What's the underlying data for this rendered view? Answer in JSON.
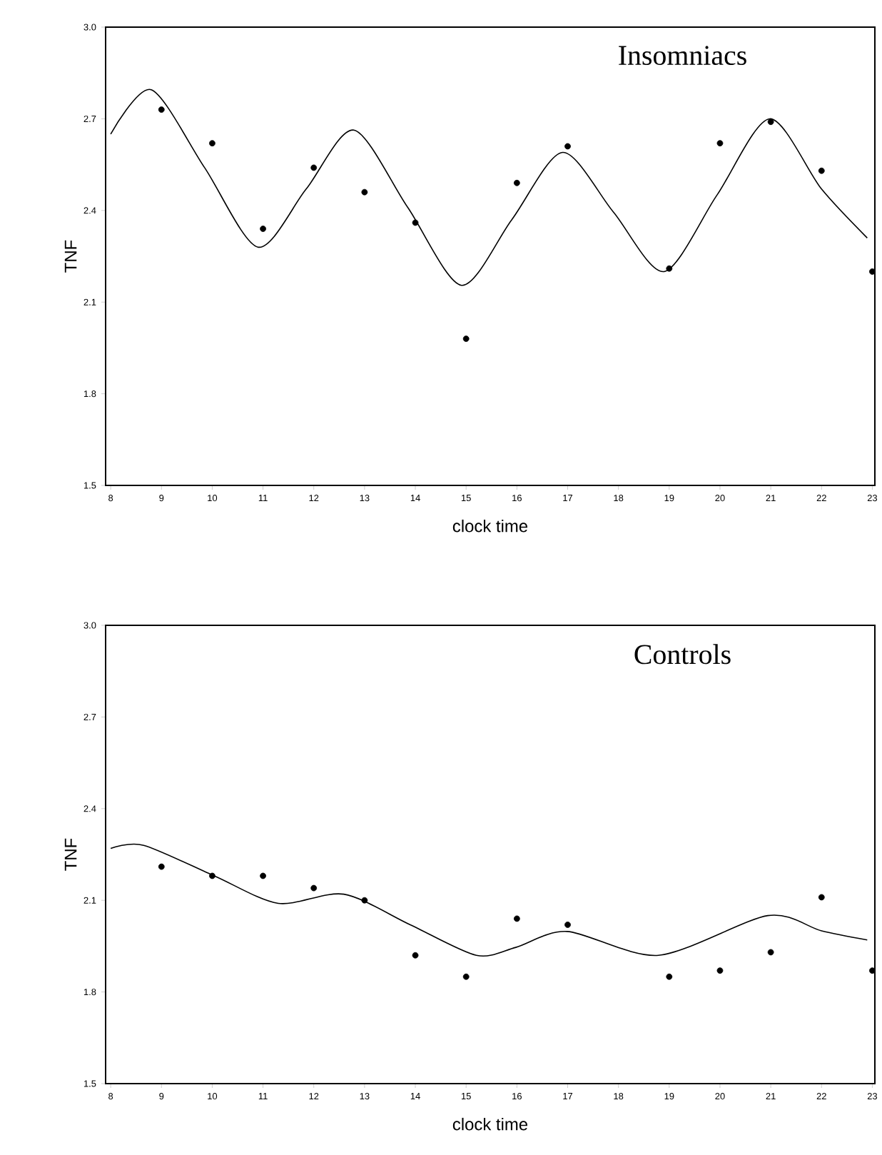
{
  "chart_data": [
    {
      "type": "scatter",
      "title": "Insomniacs",
      "xlabel": "clock time",
      "ylabel": "TNF",
      "xlim": [
        7.9,
        23.05
      ],
      "ylim": [
        1.5,
        3.0
      ],
      "xticks": [
        8,
        9,
        10,
        11,
        12,
        13,
        14,
        15,
        16,
        17,
        18,
        19,
        20,
        21,
        22,
        23
      ],
      "yticks": [
        1.5,
        1.8,
        2.1,
        2.4,
        2.7,
        {
          "value": 3.0,
          "label": "3.0"
        }
      ],
      "line_style": "solid",
      "series": [
        {
          "marker": "circle",
          "color": "#000000",
          "x": [
            9,
            10,
            11,
            12,
            13,
            14,
            15,
            16,
            17,
            19,
            20,
            21,
            22,
            23
          ],
          "values": [
            2.73,
            2.62,
            2.34,
            2.54,
            2.46,
            2.36,
            1.98,
            2.49,
            2.61,
            2.21,
            2.62,
            2.69,
            2.53,
            2.2
          ]
        },
        {
          "type": "line",
          "marker": "none",
          "color": "#000000",
          "x": [
            8.0,
            8.8,
            9.85,
            10.9,
            11.85,
            12.79,
            13.85,
            14.91,
            15.9,
            16.9,
            17.9,
            18.9,
            19.94,
            20.98,
            22.0,
            22.9
          ],
          "values": [
            2.65,
            2.795,
            2.54,
            2.28,
            2.47,
            2.663,
            2.41,
            2.155,
            2.37,
            2.59,
            2.395,
            2.2,
            2.45,
            2.7,
            2.47,
            2.31
          ]
        }
      ]
    },
    {
      "type": "scatter",
      "title": "Controls",
      "xlabel": "clock time",
      "ylabel": "TNF",
      "xlim": [
        7.9,
        23.05
      ],
      "ylim": [
        1.5,
        3.0
      ],
      "xticks": [
        8,
        9,
        10,
        11,
        12,
        13,
        14,
        15,
        16,
        17,
        18,
        19,
        20,
        21,
        22,
        23
      ],
      "yticks": [
        1.5,
        1.8,
        2.1,
        2.4,
        2.7,
        {
          "value": 3.0,
          "label": "3.0"
        }
      ],
      "line_style": "solid",
      "series": [
        {
          "marker": "circle",
          "color": "#000000",
          "x": [
            9,
            10,
            11,
            12,
            13,
            14,
            15,
            16,
            17,
            19,
            20,
            21,
            22,
            23
          ],
          "values": [
            2.21,
            2.18,
            2.18,
            2.14,
            2.1,
            1.92,
            1.85,
            2.04,
            2.02,
            1.85,
            1.87,
            1.93,
            2.11,
            1.87
          ]
        },
        {
          "type": "line",
          "marker": "none",
          "color": "#000000",
          "x": [
            8.0,
            8.65,
            10.04,
            11.3,
            12.59,
            13.9,
            15.2,
            15.98,
            16.99,
            18.79,
            20.94,
            22.0,
            22.9
          ],
          "values": [
            2.27,
            2.28,
            2.18,
            2.09,
            2.12,
            2.02,
            1.92,
            1.946,
            1.998,
            1.92,
            2.05,
            2.0,
            1.97
          ]
        }
      ]
    }
  ]
}
